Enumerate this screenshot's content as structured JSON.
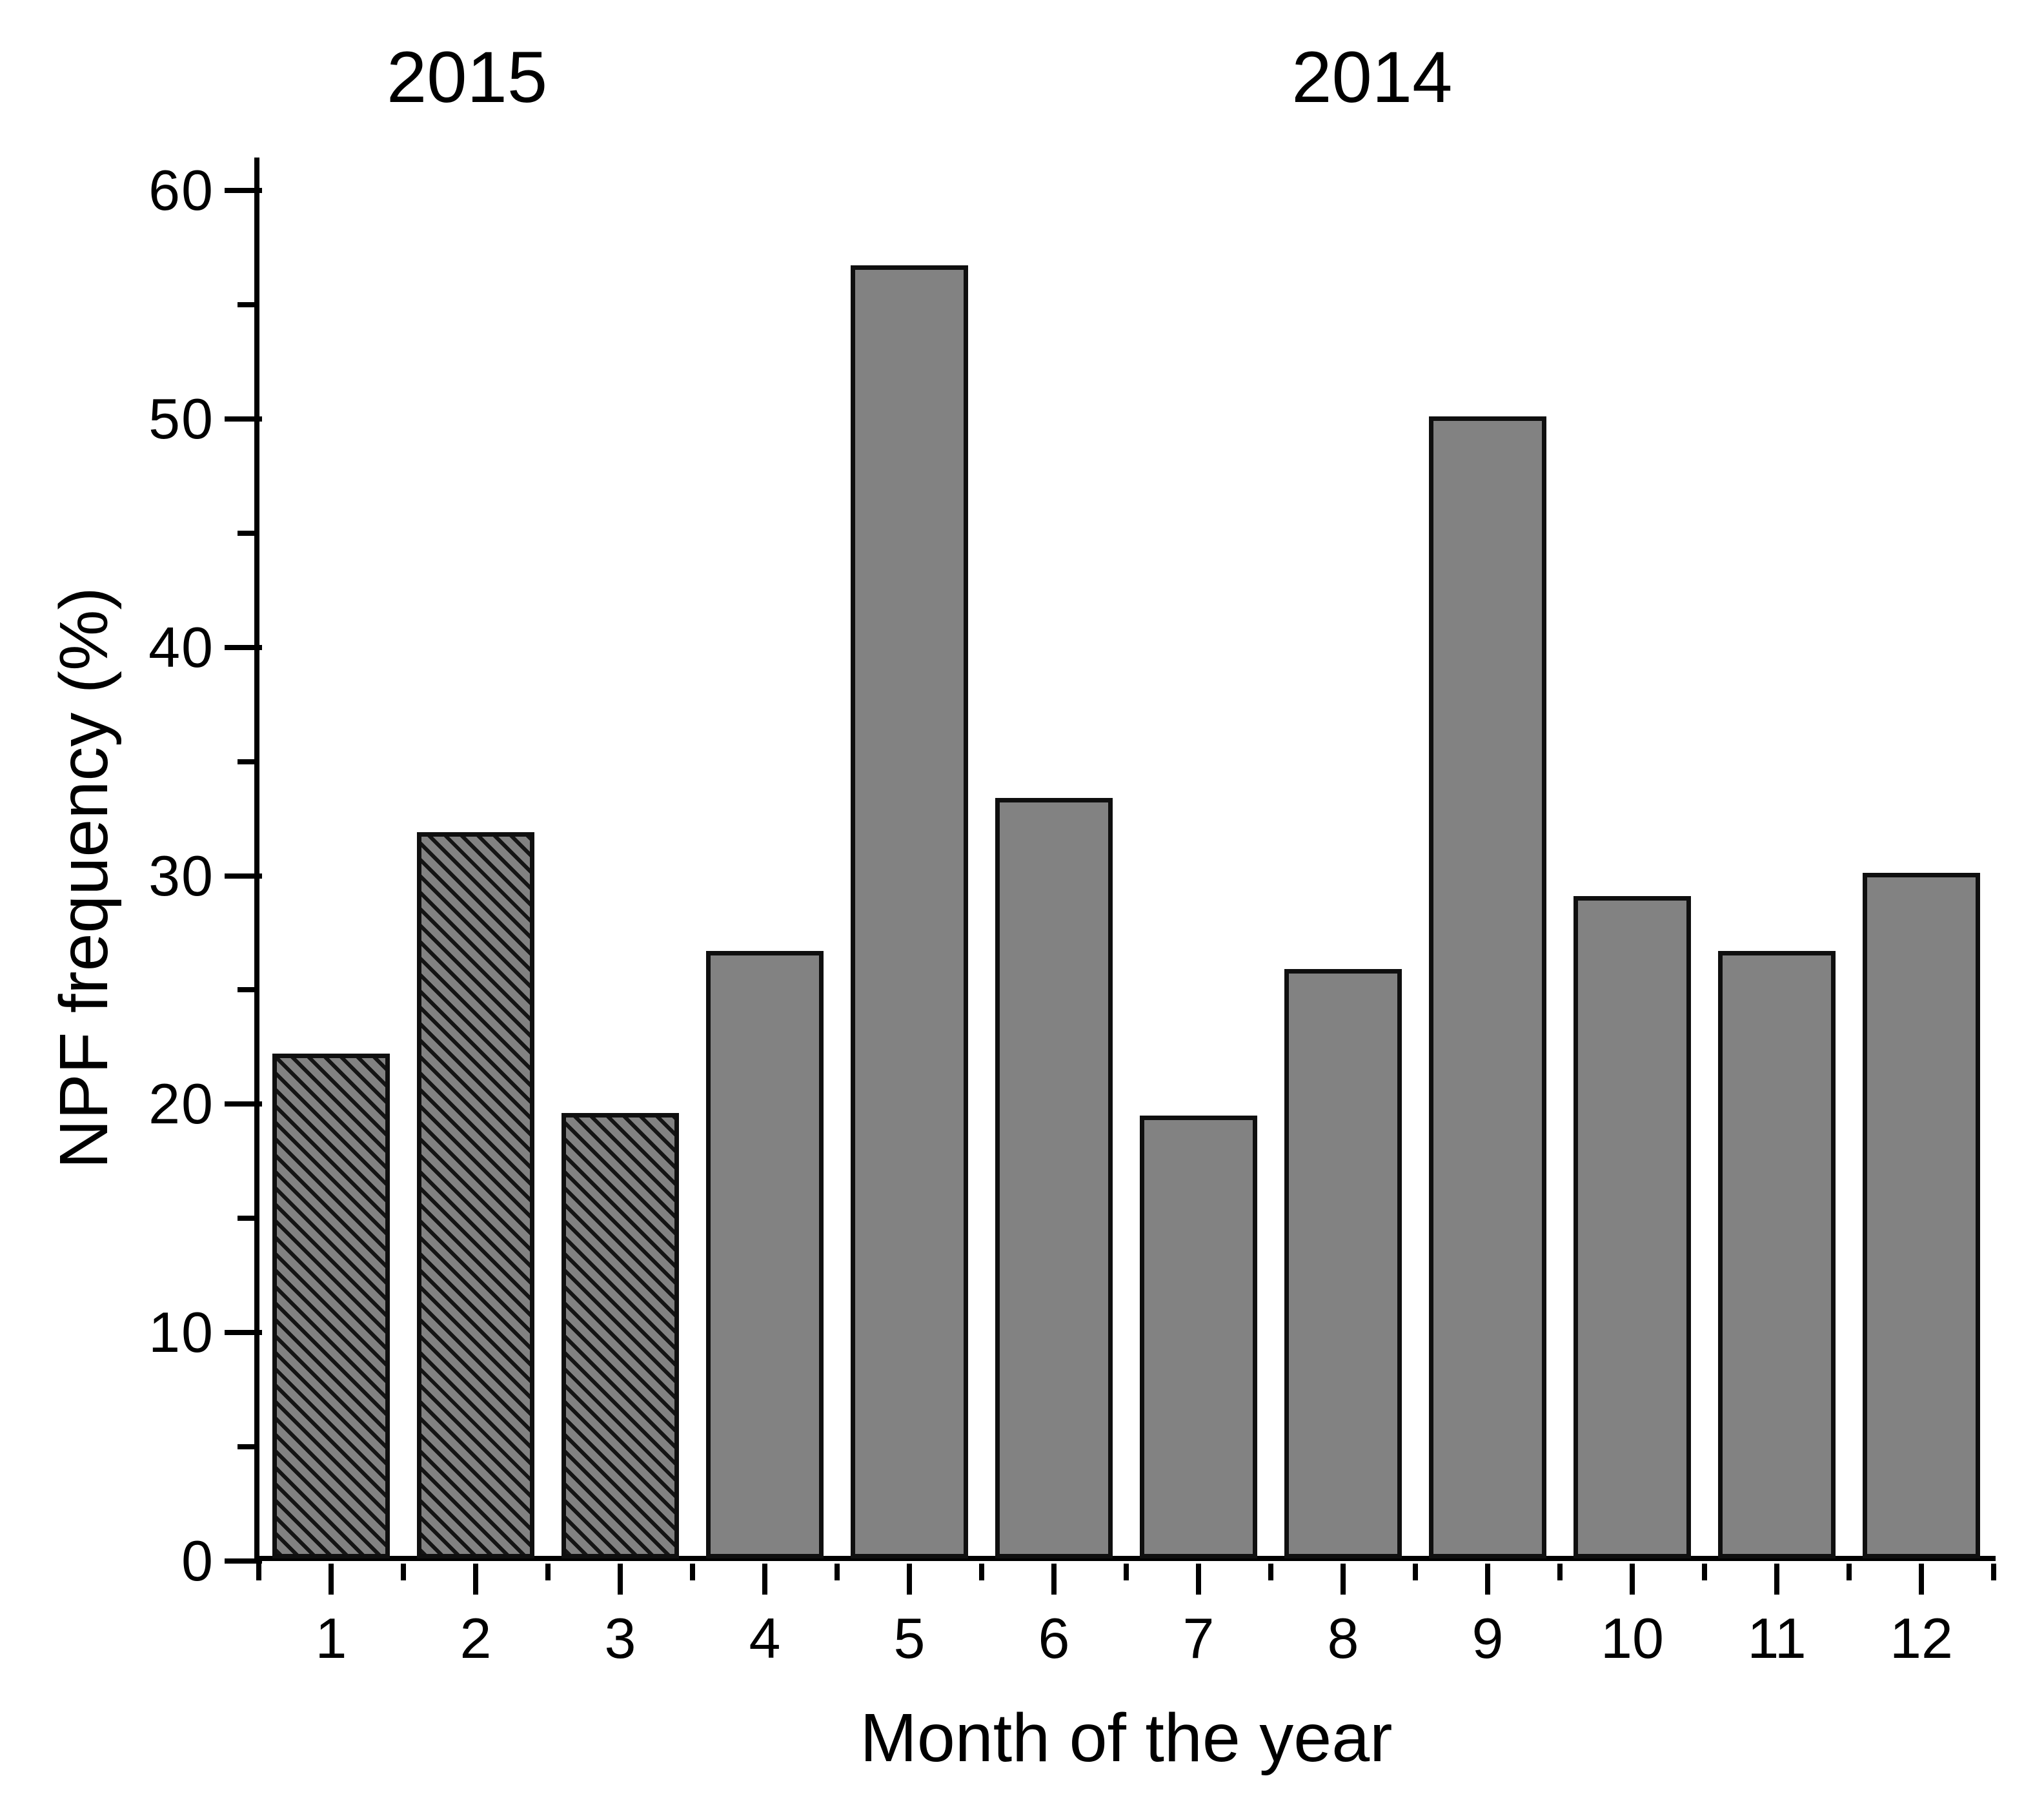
{
  "chart_data": {
    "type": "bar",
    "title": "",
    "xlabel": "Month of the year",
    "ylabel": "NPF frequency (%)",
    "categories": [
      "1",
      "2",
      "3",
      "4",
      "5",
      "6",
      "7",
      "8",
      "9",
      "10",
      "11",
      "12"
    ],
    "values": [
      22.1,
      31.8,
      19.5,
      26.6,
      56.6,
      33.3,
      19.4,
      25.8,
      50.0,
      29.0,
      26.6,
      30.0
    ],
    "hatched": [
      true,
      true,
      true,
      false,
      false,
      false,
      false,
      false,
      false,
      false,
      false,
      false
    ],
    "ylim": [
      0,
      60
    ],
    "y_major_ticks": [
      0,
      10,
      20,
      30,
      40,
      50,
      60
    ],
    "y_minor_ticks": [
      5,
      15,
      25,
      35,
      45,
      55
    ],
    "x_minor_tick_positions": [
      0.5,
      1.5,
      2.5,
      3.5,
      4.5,
      5.5,
      6.5,
      7.5,
      8.5,
      9.5,
      10.5,
      11.5,
      12.5
    ],
    "grid": false,
    "legend": null,
    "annotations": [
      {
        "label": "2015",
        "month_anchor": 1.94
      },
      {
        "label": "2014",
        "month_anchor": 8.2
      }
    ],
    "colors": {
      "bar_fill": "#828282",
      "bar_border": "#0f0f0f",
      "hatch_line": "#141414",
      "axis": "#000000",
      "text": "#000000",
      "background": "#ffffff"
    }
  }
}
